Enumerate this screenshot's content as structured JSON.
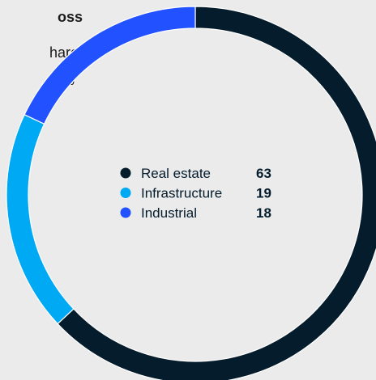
{
  "title_fragments": [
    {
      "text": "oss",
      "bold": true
    },
    {
      "text": "hare",
      "bold": false
    },
    {
      "text": "%",
      "bold": false
    }
  ],
  "chart_data": {
    "type": "pie",
    "donut": true,
    "start_angle_deg": 0,
    "direction": "clockwise",
    "categories": [
      "Real estate",
      "Infrastructure",
      "Industrial"
    ],
    "values": [
      63,
      19,
      18
    ],
    "colors": [
      "#051c2c",
      "#00a9f4",
      "#2251ff"
    ],
    "legend": "center"
  }
}
